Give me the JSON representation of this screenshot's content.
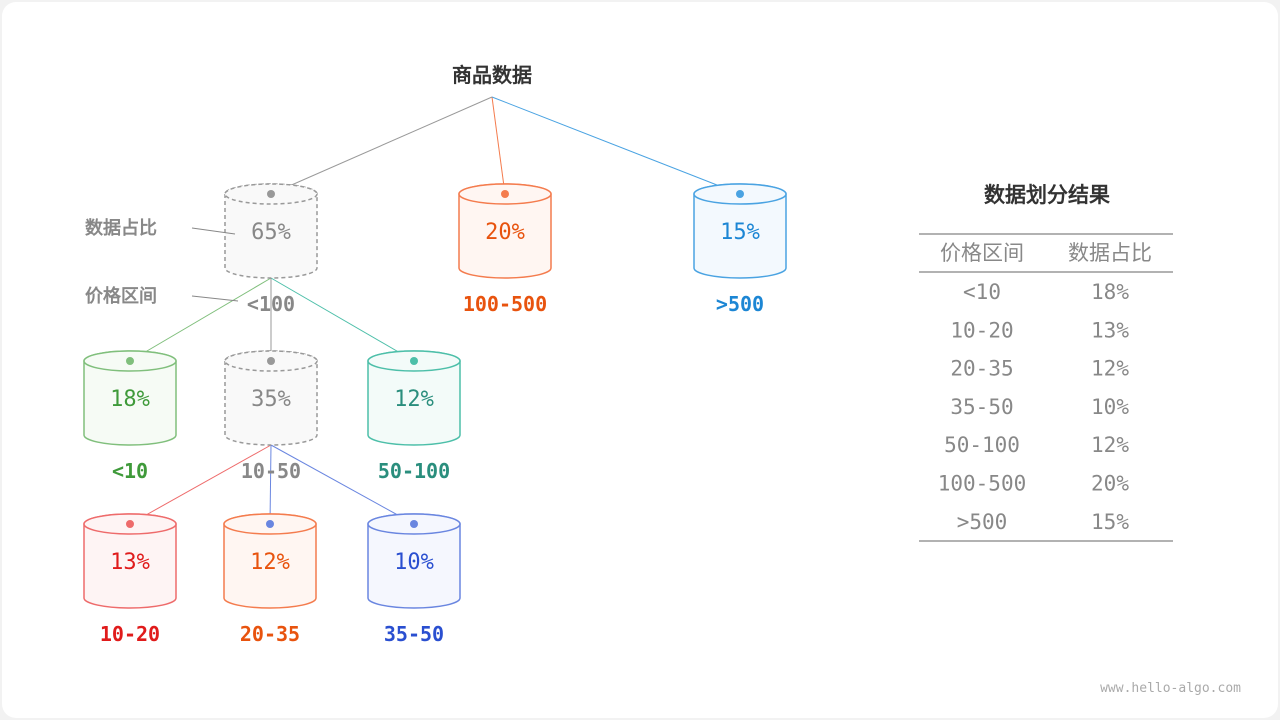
{
  "root": {
    "label": "商品数据"
  },
  "annotations": {
    "ratio_label": "数据占比",
    "range_label": "价格区间"
  },
  "nodes": [
    {
      "id": "n65",
      "percent": "65%",
      "range": "<100",
      "stroke": "#999999",
      "fill": "#f9f9f9",
      "text": "#888888",
      "dashed": true,
      "parent": "root"
    },
    {
      "id": "n20",
      "percent": "20%",
      "range": "100-500",
      "stroke": "#f47c4e",
      "fill": "#fff6f2",
      "text": "#e8530e",
      "dashed": false,
      "parent": "root"
    },
    {
      "id": "n15",
      "percent": "15%",
      "range": ">500",
      "stroke": "#4aa3e2",
      "fill": "#f3f9fe",
      "text": "#1c86d4",
      "dashed": false,
      "parent": "root"
    },
    {
      "id": "n18",
      "percent": "18%",
      "range": "<10",
      "stroke": "#80bf7c",
      "fill": "#f6fbf5",
      "text": "#3f9a3a",
      "dashed": false,
      "parent": "n65"
    },
    {
      "id": "n35",
      "percent": "35%",
      "range": "10-50",
      "stroke": "#999999",
      "fill": "#f9f9f9",
      "text": "#888888",
      "dashed": true,
      "parent": "n65"
    },
    {
      "id": "n12a",
      "percent": "12%",
      "range": "50-100",
      "stroke": "#4dbfa9",
      "fill": "#f3fbf9",
      "text": "#2a8e7d",
      "dashed": false,
      "parent": "n65"
    },
    {
      "id": "n13",
      "percent": "13%",
      "range": "10-20",
      "stroke": "#ee6b6b",
      "fill": "#fef4f4",
      "text": "#e01b1b",
      "dashed": false,
      "parent": "n35"
    },
    {
      "id": "n12b",
      "percent": "12%",
      "range": "20-35",
      "stroke": "#f47c4e",
      "fill": "#fff6f2",
      "text": "#e8530e",
      "dashed": false,
      "parent": "n35",
      "dot": "#6a86e0"
    },
    {
      "id": "n10",
      "percent": "10%",
      "range": "35-50",
      "stroke": "#6a86e0",
      "fill": "#f5f7fe",
      "text": "#2a4fd0",
      "dashed": false,
      "parent": "n35"
    }
  ],
  "table": {
    "title": "数据划分结果",
    "headers": [
      "价格区间",
      "数据占比"
    ],
    "rows": [
      [
        "<10",
        "18%"
      ],
      [
        "10-20",
        "13%"
      ],
      [
        "20-35",
        "12%"
      ],
      [
        "35-50",
        "10%"
      ],
      [
        "50-100",
        "12%"
      ],
      [
        "100-500",
        "20%"
      ],
      [
        ">500",
        "15%"
      ]
    ]
  },
  "watermark": "www.hello-algo.com"
}
